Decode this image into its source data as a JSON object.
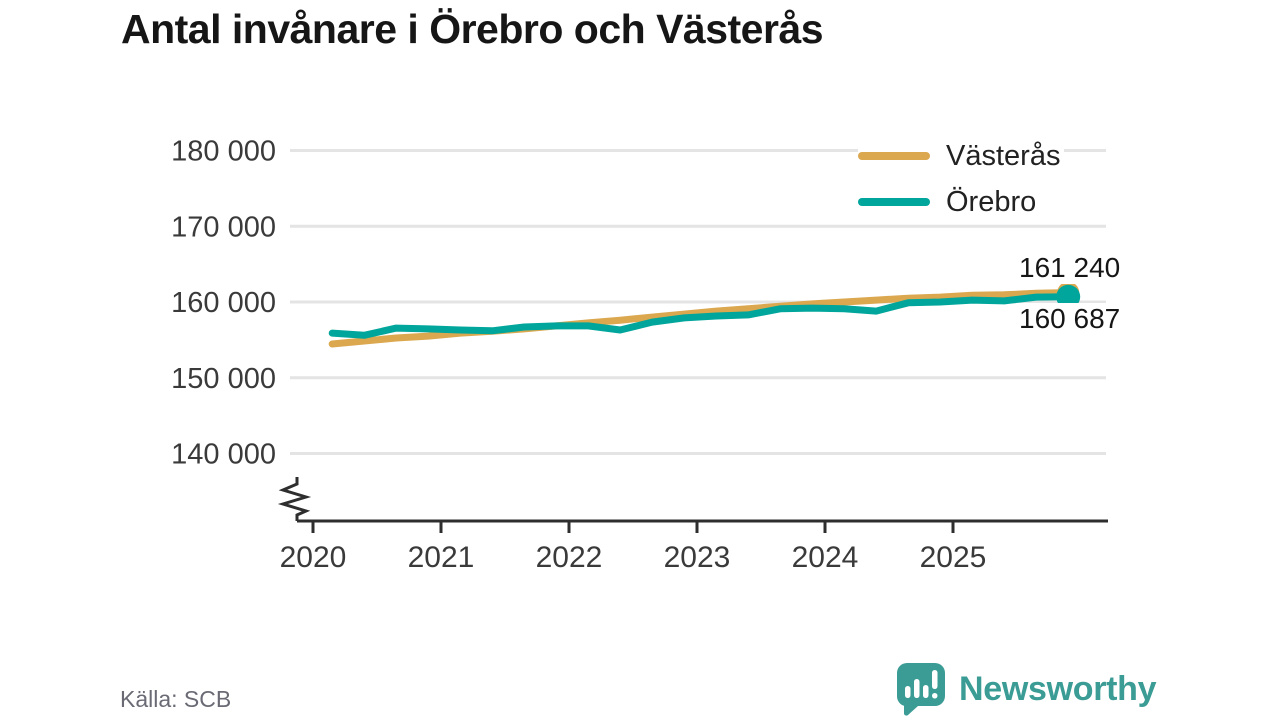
{
  "title": "Antal invånare i Örebro och Västerås",
  "source": "Källa: SCB",
  "branding": {
    "name": "Newsworthy"
  },
  "colors": {
    "vasteras": "#DBA84F",
    "orebro": "#00A69B",
    "grid": "#E4E4E4",
    "axis": "#2E2E2E",
    "tick_text": "#3A3A3A",
    "brand": "#3B9C95"
  },
  "legend": {
    "items": [
      {
        "label": "Västerås",
        "color_key": "vasteras"
      },
      {
        "label": "Örebro",
        "color_key": "orebro"
      }
    ]
  },
  "end_labels": {
    "vasteras": "161 240",
    "orebro": "160 687"
  },
  "chart_data": {
    "type": "line",
    "title": "Antal invånare i Örebro och Västerås",
    "xlabel": "",
    "ylabel": "",
    "grid": "horizontal",
    "legend_position": "top-right",
    "axis_break": true,
    "ylim_displayed": [
      135000,
      183000
    ],
    "y_ticks": [
      140000,
      150000,
      160000,
      170000,
      180000
    ],
    "y_tick_labels": [
      "140 000",
      "150 000",
      "160 000",
      "170 000",
      "180 000"
    ],
    "x_ticks": [
      2020,
      2021,
      2022,
      2023,
      2024,
      2025
    ],
    "x_tick_labels": [
      "2020",
      "2021",
      "2022",
      "2023",
      "2024",
      "2025"
    ],
    "x": [
      2020.15,
      2020.4,
      2020.65,
      2020.9,
      2021.15,
      2021.4,
      2021.65,
      2021.9,
      2022.15,
      2022.4,
      2022.65,
      2022.9,
      2023.15,
      2023.4,
      2023.65,
      2023.9,
      2024.15,
      2024.4,
      2024.65,
      2024.9,
      2025.15,
      2025.4,
      2025.65,
      2025.9
    ],
    "series": [
      {
        "name": "Västerås",
        "color_key": "vasteras",
        "end_value": 161240,
        "values": [
          154450,
          154850,
          155250,
          155500,
          155900,
          156150,
          156450,
          156850,
          157250,
          157600,
          158000,
          158400,
          158800,
          159100,
          159450,
          159750,
          160000,
          160250,
          160500,
          160650,
          160900,
          160950,
          161150,
          161240
        ]
      },
      {
        "name": "Örebro",
        "color_key": "orebro",
        "end_value": 160687,
        "values": [
          155900,
          155600,
          156550,
          156450,
          156300,
          156200,
          156700,
          156850,
          156850,
          156300,
          157350,
          157900,
          158150,
          158300,
          159100,
          159200,
          159100,
          158800,
          159900,
          160000,
          160250,
          160150,
          160650,
          160687
        ]
      }
    ]
  }
}
